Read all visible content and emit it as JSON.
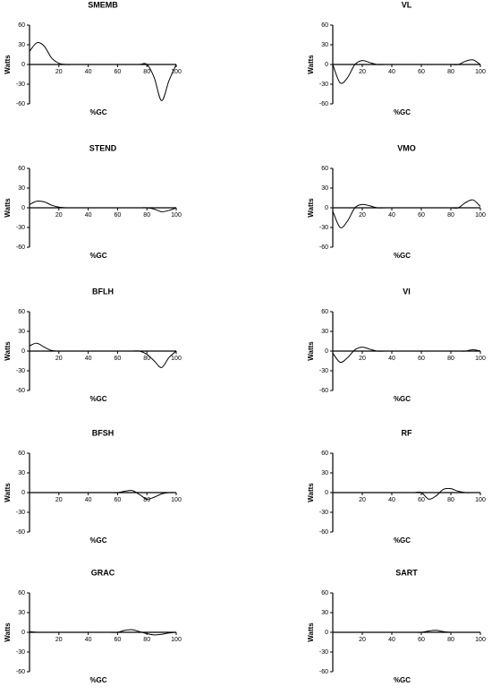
{
  "chart_data": [
    {
      "type": "line",
      "title": "SMEMB",
      "xlabel": "%GC",
      "ylabel": "Watts",
      "x": [
        0,
        5,
        10,
        15,
        20,
        25,
        30,
        35,
        40,
        45,
        50,
        55,
        60,
        65,
        70,
        75,
        80,
        85,
        90,
        95,
        100
      ],
      "values": [
        20,
        33,
        28,
        10,
        2,
        0,
        0,
        0,
        0,
        0,
        0,
        0,
        0,
        0,
        0,
        0,
        0,
        -20,
        -55,
        -25,
        0
      ],
      "color": "#000000",
      "xlim": [
        0,
        100
      ],
      "ylim": [
        -60,
        60
      ],
      "xticks": [
        20,
        40,
        60,
        80,
        100
      ],
      "yticks": [
        60,
        30,
        0,
        -30,
        -60
      ]
    },
    {
      "type": "line",
      "title": "VL",
      "xlabel": "%GC",
      "ylabel": "Watts",
      "x": [
        0,
        5,
        10,
        15,
        20,
        25,
        30,
        35,
        40,
        45,
        50,
        55,
        60,
        65,
        70,
        75,
        80,
        85,
        90,
        95,
        100
      ],
      "values": [
        0,
        -28,
        -20,
        0,
        6,
        3,
        0,
        0,
        0,
        0,
        0,
        0,
        0,
        0,
        0,
        0,
        0,
        0,
        5,
        7,
        0
      ],
      "color": "#000000",
      "xlim": [
        0,
        100
      ],
      "ylim": [
        -60,
        60
      ],
      "xticks": [
        20,
        40,
        60,
        80,
        100
      ],
      "yticks": [
        60,
        30,
        0,
        -30,
        -60
      ]
    },
    {
      "type": "line",
      "title": "STEND",
      "xlabel": "%GC",
      "ylabel": "Watts",
      "x": [
        0,
        5,
        10,
        15,
        20,
        25,
        30,
        35,
        40,
        45,
        50,
        55,
        60,
        65,
        70,
        75,
        80,
        85,
        90,
        95,
        100
      ],
      "values": [
        5,
        10,
        9,
        4,
        1,
        0,
        0,
        0,
        0,
        0,
        0,
        0,
        0,
        0,
        0,
        0,
        0,
        -2,
        -6,
        -4,
        0
      ],
      "color": "#000000",
      "xlim": [
        0,
        100
      ],
      "ylim": [
        -60,
        60
      ],
      "xticks": [
        20,
        40,
        60,
        80,
        100
      ],
      "yticks": [
        60,
        30,
        0,
        -30,
        -60
      ]
    },
    {
      "type": "line",
      "title": "VMO",
      "xlabel": "%GC",
      "ylabel": "Watts",
      "x": [
        0,
        5,
        10,
        15,
        20,
        25,
        30,
        35,
        40,
        45,
        50,
        55,
        60,
        65,
        70,
        75,
        80,
        85,
        90,
        95,
        100
      ],
      "values": [
        -5,
        -30,
        -20,
        0,
        5,
        3,
        0,
        0,
        0,
        0,
        0,
        0,
        0,
        0,
        0,
        0,
        0,
        0,
        8,
        12,
        2
      ],
      "color": "#000000",
      "xlim": [
        0,
        100
      ],
      "ylim": [
        -60,
        60
      ],
      "xticks": [
        20,
        40,
        60,
        80,
        100
      ],
      "yticks": [
        60,
        30,
        0,
        -30,
        -60
      ]
    },
    {
      "type": "line",
      "title": "BFLH",
      "xlabel": "%GC",
      "ylabel": "Watts",
      "x": [
        0,
        5,
        10,
        15,
        20,
        25,
        30,
        35,
        40,
        45,
        50,
        55,
        60,
        65,
        70,
        75,
        80,
        85,
        90,
        95,
        100
      ],
      "values": [
        8,
        12,
        6,
        1,
        0,
        0,
        0,
        0,
        0,
        0,
        0,
        0,
        0,
        0,
        0,
        0,
        -5,
        -15,
        -25,
        -10,
        0
      ],
      "color": "#000000",
      "xlim": [
        0,
        100
      ],
      "ylim": [
        -60,
        60
      ],
      "xticks": [
        20,
        40,
        60,
        80,
        100
      ],
      "yticks": [
        60,
        30,
        0,
        -30,
        -60
      ]
    },
    {
      "type": "line",
      "title": "VI",
      "xlabel": "%GC",
      "ylabel": "Watts",
      "x": [
        0,
        5,
        10,
        15,
        20,
        25,
        30,
        35,
        40,
        45,
        50,
        55,
        60,
        65,
        70,
        75,
        80,
        85,
        90,
        95,
        100
      ],
      "values": [
        -3,
        -17,
        -10,
        2,
        6,
        3,
        0,
        0,
        0,
        0,
        0,
        0,
        0,
        0,
        0,
        0,
        0,
        0,
        0,
        2,
        0
      ],
      "color": "#000000",
      "xlim": [
        0,
        100
      ],
      "ylim": [
        -60,
        60
      ],
      "xticks": [
        20,
        40,
        60,
        80,
        100
      ],
      "yticks": [
        60,
        30,
        0,
        -30,
        -60
      ]
    },
    {
      "type": "line",
      "title": "BFSH",
      "xlabel": "%GC",
      "ylabel": "Watts",
      "x": [
        0,
        5,
        10,
        15,
        20,
        25,
        30,
        35,
        40,
        45,
        50,
        55,
        60,
        65,
        70,
        75,
        80,
        85,
        90,
        95,
        100
      ],
      "values": [
        0,
        0,
        0,
        0,
        0,
        0,
        0,
        0,
        0,
        0,
        0,
        0,
        0,
        2,
        3,
        -3,
        -10,
        -7,
        -2,
        0,
        0
      ],
      "color": "#000000",
      "xlim": [
        0,
        100
      ],
      "ylim": [
        -60,
        60
      ],
      "xticks": [
        20,
        40,
        60,
        80,
        100
      ],
      "yticks": [
        60,
        30,
        0,
        -30,
        -60
      ]
    },
    {
      "type": "line",
      "title": "RF",
      "xlabel": "%GC",
      "ylabel": "Watts",
      "x": [
        0,
        5,
        10,
        15,
        20,
        25,
        30,
        35,
        40,
        45,
        50,
        55,
        60,
        65,
        70,
        75,
        80,
        85,
        90,
        95,
        100
      ],
      "values": [
        0,
        0,
        0,
        0,
        0,
        0,
        0,
        0,
        0,
        0,
        0,
        0,
        0,
        -10,
        -5,
        5,
        6,
        2,
        0,
        0,
        0
      ],
      "color": "#000000",
      "xlim": [
        0,
        100
      ],
      "ylim": [
        -60,
        60
      ],
      "xticks": [
        20,
        40,
        60,
        80,
        100
      ],
      "yticks": [
        60,
        30,
        0,
        -30,
        -60
      ]
    },
    {
      "type": "line",
      "title": "GRAC",
      "xlabel": "%GC",
      "ylabel": "Watts",
      "x": [
        0,
        5,
        10,
        15,
        20,
        25,
        30,
        35,
        40,
        45,
        50,
        55,
        60,
        65,
        70,
        75,
        80,
        85,
        90,
        95,
        100
      ],
      "values": [
        1,
        0,
        0,
        0,
        0,
        0,
        0,
        0,
        0,
        0,
        0,
        0,
        0,
        3,
        4,
        1,
        -2,
        -4,
        -3,
        -1,
        0
      ],
      "color": "#000000",
      "xlim": [
        0,
        100
      ],
      "ylim": [
        -60,
        60
      ],
      "xticks": [
        20,
        40,
        60,
        80,
        100
      ],
      "yticks": [
        60,
        30,
        0,
        -30,
        -60
      ]
    },
    {
      "type": "line",
      "title": "SART",
      "xlabel": "%GC",
      "ylabel": "Watts",
      "x": [
        0,
        5,
        10,
        15,
        20,
        25,
        30,
        35,
        40,
        45,
        50,
        55,
        60,
        65,
        70,
        75,
        80,
        85,
        90,
        95,
        100
      ],
      "values": [
        0,
        0,
        0,
        0,
        0,
        0,
        0,
        0,
        0,
        0,
        0,
        0,
        0,
        2,
        3,
        1,
        0,
        0,
        0,
        0,
        0
      ],
      "color": "#000000",
      "xlim": [
        0,
        100
      ],
      "ylim": [
        -60,
        60
      ],
      "xticks": [
        20,
        40,
        60,
        80,
        100
      ],
      "yticks": [
        60,
        30,
        0,
        -30,
        -60
      ]
    }
  ]
}
